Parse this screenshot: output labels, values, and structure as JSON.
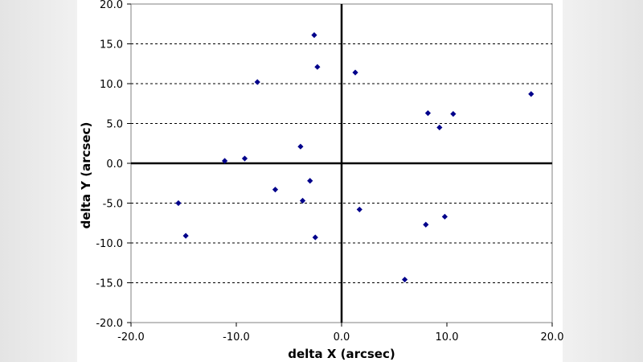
{
  "chart_data": {
    "type": "scatter",
    "xlabel": "delta X (arcsec)",
    "ylabel": "delta Y (arcsec)",
    "xlim": [
      -20,
      20
    ],
    "ylim": [
      -20,
      20
    ],
    "x_ticks": [
      "-20.0",
      "-10.0",
      "0.0",
      "10.0",
      "20.0"
    ],
    "y_ticks": [
      "20.0",
      "15.0",
      "10.0",
      "5.0",
      "0.0",
      "-5.0",
      "-10.0",
      "-15.0",
      "-20.0"
    ],
    "grid": "horizontal dashed",
    "marker_color": "#00008b",
    "x": [
      -2.6,
      -2.3,
      1.3,
      -8.0,
      8.2,
      10.6,
      18.0,
      9.3,
      -3.9,
      -9.2,
      -11.1,
      -3.0,
      -6.3,
      -3.7,
      -15.5,
      1.7,
      8.0,
      9.8,
      -14.8,
      -2.5,
      6.0
    ],
    "y": [
      16.1,
      12.1,
      11.4,
      10.2,
      6.3,
      6.2,
      8.7,
      4.5,
      2.1,
      0.6,
      0.3,
      -2.2,
      -3.3,
      -4.7,
      -5.0,
      -5.8,
      -7.7,
      -6.7,
      -9.1,
      -9.3,
      -14.6
    ]
  }
}
